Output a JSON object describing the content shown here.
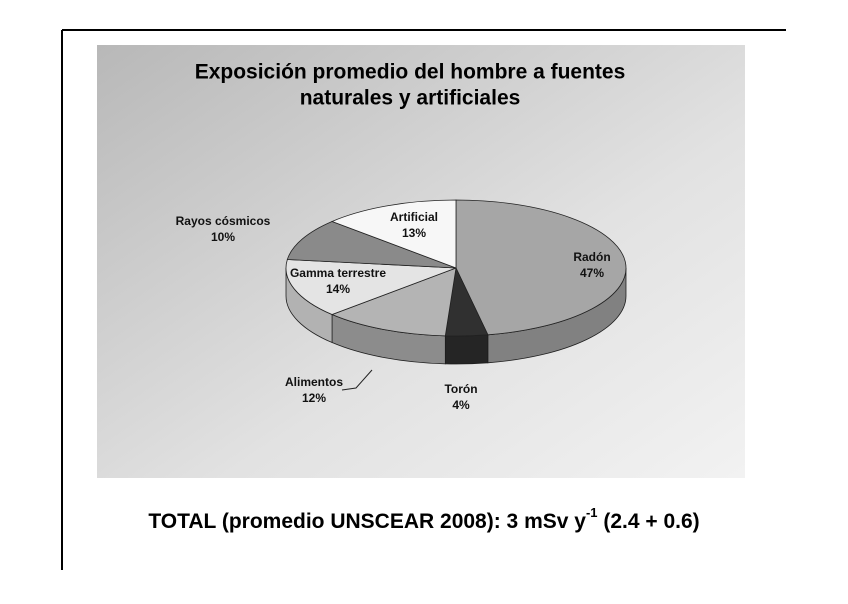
{
  "chart_data": {
    "type": "pie3d",
    "title": [
      "Exposición promedio del hombre a fuentes",
      "naturales y artificiales"
    ],
    "categories": [
      "Radón",
      "Torón",
      "Alimentos",
      "Gamma terrestre",
      "Rayos cósmicos",
      "Artificial"
    ],
    "values": [
      47,
      4,
      12,
      14,
      10,
      13
    ],
    "value_labels": [
      "47%",
      "4%",
      "12%",
      "14%",
      "10%",
      "13%"
    ],
    "colors": [
      "#a6a6a6",
      "#303030",
      "#b4b4b4",
      "#e4e4e4",
      "#8a8a8a",
      "#f7f7f7"
    ]
  },
  "footer": {
    "before": "TOTAL (promedio UNSCEAR 2008): 3 mSv y",
    "superscript": "-1",
    "after": " (2.4 + 0.6)"
  }
}
